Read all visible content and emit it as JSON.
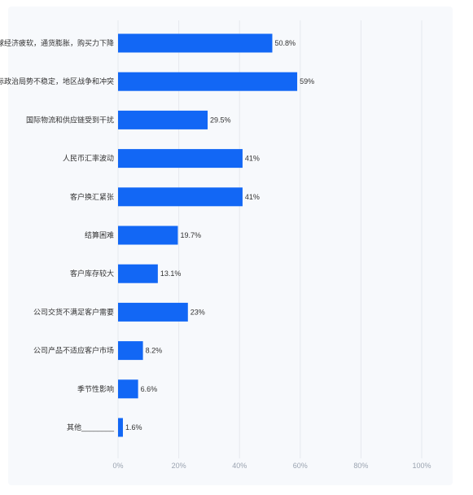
{
  "chart_data": {
    "type": "bar",
    "orientation": "horizontal",
    "categories": [
      "全球经济疲软，通货膨胀，购买力下降",
      "国际政治局势不稳定，地区战争和冲突",
      "国际物流和供应链受到干扰",
      "人民币汇率波动",
      "客户换汇紧张",
      "结算困难",
      "客户库存较大",
      "公司交货不满足客户需要",
      "公司产品不适应客户市场",
      "季节性影响",
      "其他________"
    ],
    "values": [
      50.8,
      59,
      29.5,
      41,
      41,
      19.7,
      13.1,
      23,
      8.2,
      6.6,
      1.6
    ],
    "value_labels": [
      "50.8%",
      "59%",
      "29.5%",
      "41%",
      "41%",
      "19.7%",
      "13.1%",
      "23%",
      "8.2%",
      "6.6%",
      "1.6%"
    ],
    "xlim": [
      0,
      100
    ],
    "xticks": [
      0,
      20,
      40,
      60,
      80,
      100
    ],
    "xtick_labels": [
      "0%",
      "20%",
      "40%",
      "60%",
      "80%",
      "100%"
    ],
    "grid": true,
    "bar_color": "#1267f5",
    "title": "",
    "xlabel": "",
    "ylabel": ""
  }
}
